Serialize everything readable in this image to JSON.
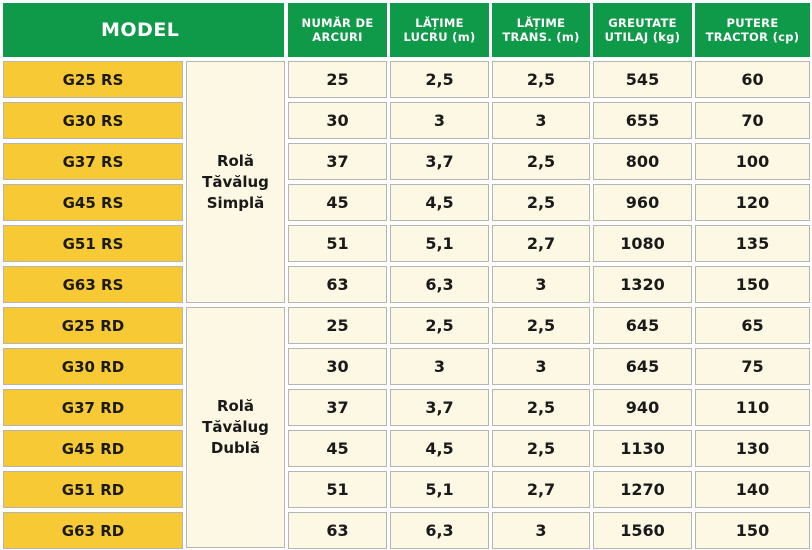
{
  "header": {
    "model": "MODEL",
    "columns": [
      {
        "line1": "NUMĂR DE",
        "line2": "ARCURI"
      },
      {
        "line1": "LĂȚIME",
        "line2": "LUCRU (m)"
      },
      {
        "line1": "LĂȚIME",
        "line2": "TRANS. (m)"
      },
      {
        "line1": "GREUTATE",
        "line2": "UTILAJ (kg)"
      },
      {
        "line1": "PUTERE",
        "line2": "TRACTOR (cp)"
      }
    ]
  },
  "groups": [
    {
      "type_lines": [
        "Rolă",
        "Tăvălug",
        "Simplă"
      ]
    },
    {
      "type_lines": [
        "Rolă",
        "Tăvălug",
        "Dublă"
      ]
    }
  ],
  "rows": [
    {
      "model": "G25 RS",
      "values": [
        "25",
        "2,5",
        "2,5",
        "545",
        "60"
      ]
    },
    {
      "model": "G30 RS",
      "values": [
        "30",
        "3",
        "3",
        "655",
        "70"
      ]
    },
    {
      "model": "G37 RS",
      "values": [
        "37",
        "3,7",
        "2,5",
        "800",
        "100"
      ]
    },
    {
      "model": "G45 RS",
      "values": [
        "45",
        "4,5",
        "2,5",
        "960",
        "120"
      ]
    },
    {
      "model": "G51 RS",
      "values": [
        "51",
        "5,1",
        "2,7",
        "1080",
        "135"
      ]
    },
    {
      "model": "G63 RS",
      "values": [
        "63",
        "6,3",
        "3",
        "1320",
        "150"
      ]
    },
    {
      "model": "G25 RD",
      "values": [
        "25",
        "2,5",
        "2,5",
        "645",
        "65"
      ]
    },
    {
      "model": "G30 RD",
      "values": [
        "30",
        "3",
        "3",
        "645",
        "75"
      ]
    },
    {
      "model": "G37 RD",
      "values": [
        "37",
        "3,7",
        "2,5",
        "940",
        "110"
      ]
    },
    {
      "model": "G45 RD",
      "values": [
        "45",
        "4,5",
        "2,5",
        "1130",
        "130"
      ]
    },
    {
      "model": "G51 RD",
      "values": [
        "51",
        "5,1",
        "2,7",
        "1270",
        "140"
      ]
    },
    {
      "model": "G63 RD",
      "values": [
        "63",
        "6,3",
        "3",
        "1560",
        "150"
      ]
    }
  ],
  "colors": {
    "header_bg": "#0f9a49",
    "model_bg": "#f7ca35",
    "cell_bg": "#fdf8e4"
  }
}
